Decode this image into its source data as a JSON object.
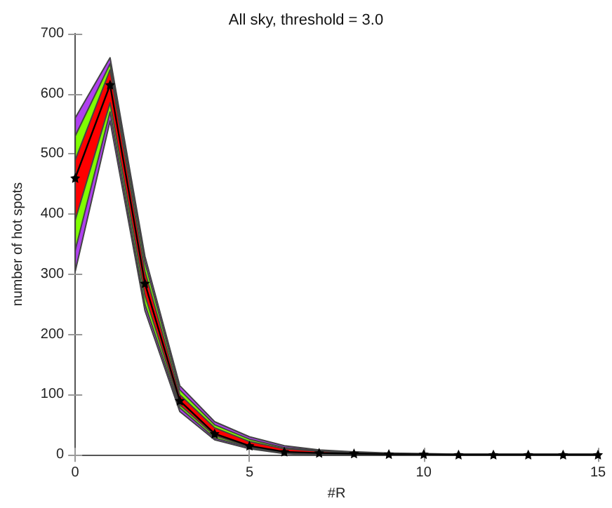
{
  "chart_data": {
    "type": "line",
    "title": "All sky, threshold = 3.0",
    "xlabel": "#R",
    "ylabel": "number of hot spots",
    "x": [
      0,
      1,
      2,
      3,
      4,
      5,
      6,
      7,
      8,
      9,
      10,
      11,
      12,
      13,
      14,
      15
    ],
    "series": [
      {
        "color": "#000000",
        "marker": "star",
        "values": [
          460,
          615,
          285,
          90,
          35,
          15,
          5,
          3,
          2,
          1,
          1,
          0,
          0,
          0,
          0,
          0
        ]
      },
      {
        "type": "area",
        "color": "#b040f0",
        "values": [
          null,
          null,
          null,
          null,
          null,
          null,
          null,
          null,
          null,
          null,
          null,
          null,
          null,
          null,
          null,
          null
        ],
        "lower": [
          305,
          555,
          240,
          72,
          25,
          10,
          2,
          0,
          0,
          0,
          0,
          0,
          0,
          0,
          0,
          0
        ],
        "upper": [
          560,
          660,
          330,
          115,
          55,
          30,
          15,
          8,
          5,
          3,
          2,
          1,
          1,
          1,
          1,
          1
        ]
      },
      {
        "type": "area",
        "color": "#80ff00",
        "values": [
          null,
          null,
          null,
          null,
          null,
          null,
          null,
          null,
          null,
          null,
          null,
          null,
          null,
          null,
          null,
          null
        ],
        "lower": [
          340,
          570,
          250,
          78,
          28,
          12,
          3,
          1,
          0,
          0,
          0,
          0,
          0,
          0,
          0,
          0
        ],
        "upper": [
          530,
          650,
          320,
          108,
          50,
          26,
          12,
          7,
          4,
          2,
          1,
          1,
          1,
          1,
          1,
          1
        ]
      },
      {
        "type": "area",
        "color": "#ff0000",
        "values": [
          null,
          null,
          null,
          null,
          null,
          null,
          null,
          null,
          null,
          null,
          null,
          null,
          null,
          null,
          null,
          null
        ],
        "lower": [
          390,
          585,
          265,
          83,
          32,
          13,
          4,
          2,
          1,
          0,
          0,
          0,
          0,
          0,
          0,
          0
        ],
        "upper": [
          490,
          640,
          305,
          100,
          45,
          22,
          10,
          6,
          3,
          2,
          1,
          1,
          1,
          1,
          1,
          1
        ]
      }
    ],
    "xlim": [
      0,
      15
    ],
    "xticks": [
      0,
      5,
      10,
      15
    ],
    "ylim": [
      0,
      700
    ],
    "yticks": [
      0,
      100,
      200,
      300,
      400,
      500,
      600,
      700
    ],
    "grid": false
  }
}
